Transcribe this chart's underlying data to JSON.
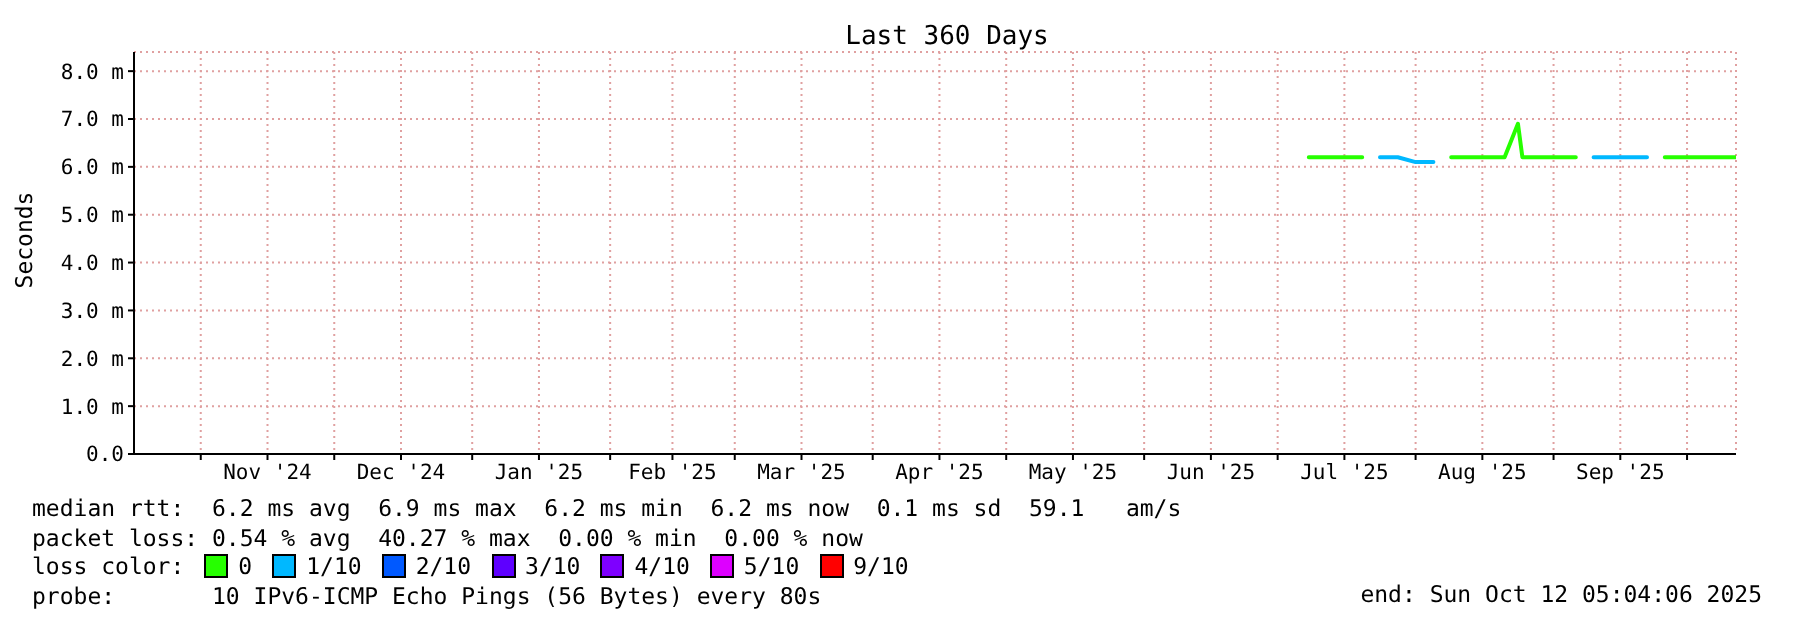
{
  "chart_data": {
    "type": "line",
    "title": "Last 360 Days",
    "ylabel": "Seconds",
    "legend_title": "loss color:",
    "x": [
      "2025-07-08",
      "2025-07-12",
      "2025-07-16",
      "2025-07-20",
      "2025-07-24",
      "2025-07-28",
      "2025-08-01",
      "2025-08-05",
      "2025-08-09",
      "2025-08-13",
      "2025-08-17",
      "2025-08-21",
      "2025-08-24",
      "2025-08-25",
      "2025-08-29",
      "2025-09-02",
      "2025-09-06",
      "2025-09-10",
      "2025-09-14",
      "2025-09-18",
      "2025-09-22",
      "2025-09-26",
      "2025-09-30",
      "2025-10-04",
      "2025-10-08",
      "2025-10-12"
    ],
    "series": [
      {
        "name": "0",
        "color": "#26ff00",
        "values": [
          6.2,
          6.2,
          6.2,
          6.2,
          null,
          null,
          null,
          null,
          6.2,
          6.2,
          6.2,
          6.2,
          6.9,
          6.2,
          6.2,
          6.2,
          6.2,
          null,
          null,
          null,
          null,
          6.2,
          6.2,
          6.2,
          6.2,
          6.2
        ]
      },
      {
        "name": "1/10",
        "color": "#00b8ff",
        "values": [
          null,
          null,
          null,
          null,
          6.2,
          6.2,
          6.1,
          6.1,
          null,
          null,
          null,
          null,
          null,
          null,
          null,
          null,
          null,
          6.2,
          6.2,
          6.2,
          6.2,
          null,
          null,
          null,
          null,
          null
        ]
      },
      {
        "name": "2/10",
        "color": "#0059ff",
        "values": [
          null,
          null,
          null,
          null,
          null,
          null,
          null,
          null,
          null,
          null,
          null,
          null,
          null,
          null,
          null,
          null,
          null,
          null,
          null,
          null,
          null,
          null,
          null,
          null,
          null,
          null
        ]
      },
      {
        "name": "3/10",
        "color": "#5e00ff",
        "values": [
          null,
          null,
          null,
          null,
          null,
          null,
          null,
          null,
          null,
          null,
          null,
          null,
          null,
          null,
          null,
          null,
          null,
          null,
          null,
          null,
          null,
          null,
          null,
          null,
          null,
          null
        ]
      },
      {
        "name": "4/10",
        "color": "#7e00ff",
        "values": [
          null,
          null,
          null,
          null,
          null,
          null,
          null,
          null,
          null,
          null,
          null,
          null,
          null,
          null,
          null,
          null,
          null,
          null,
          null,
          null,
          null,
          null,
          null,
          null,
          null,
          null
        ]
      },
      {
        "name": "5/10",
        "color": "#dd00ff",
        "values": [
          null,
          null,
          null,
          null,
          null,
          null,
          null,
          null,
          null,
          null,
          null,
          null,
          null,
          null,
          null,
          null,
          null,
          null,
          null,
          null,
          null,
          null,
          null,
          null,
          null,
          null
        ]
      },
      {
        "name": "9/10",
        "color": "#ff0000",
        "values": [
          null,
          null,
          null,
          null,
          null,
          null,
          null,
          null,
          null,
          null,
          null,
          null,
          null,
          null,
          null,
          null,
          null,
          null,
          null,
          null,
          null,
          null,
          null,
          null,
          null,
          null
        ]
      }
    ],
    "xlim": [
      "2024-10-17",
      "2025-10-12"
    ],
    "xticks": [
      {
        "value": "2024-11-01",
        "label": null
      },
      {
        "value": "2024-11-16",
        "label": "Nov '24"
      },
      {
        "value": "2024-12-01",
        "label": null
      },
      {
        "value": "2024-12-16",
        "label": "Dec '24"
      },
      {
        "value": "2025-01-01",
        "label": null
      },
      {
        "value": "2025-01-16",
        "label": "Jan '25"
      },
      {
        "value": "2025-02-01",
        "label": null
      },
      {
        "value": "2025-02-15",
        "label": "Feb '25"
      },
      {
        "value": "2025-03-01",
        "label": null
      },
      {
        "value": "2025-03-16",
        "label": "Mar '25"
      },
      {
        "value": "2025-04-01",
        "label": null
      },
      {
        "value": "2025-04-16",
        "label": "Apr '25"
      },
      {
        "value": "2025-05-01",
        "label": null
      },
      {
        "value": "2025-05-16",
        "label": "May '25"
      },
      {
        "value": "2025-06-01",
        "label": null
      },
      {
        "value": "2025-06-16",
        "label": "Jun '25"
      },
      {
        "value": "2025-07-01",
        "label": null
      },
      {
        "value": "2025-07-16",
        "label": "Jul '25"
      },
      {
        "value": "2025-08-01",
        "label": null
      },
      {
        "value": "2025-08-16",
        "label": "Aug '25"
      },
      {
        "value": "2025-09-01",
        "label": null
      },
      {
        "value": "2025-09-16",
        "label": "Sep '25"
      },
      {
        "value": "2025-10-01",
        "label": null
      }
    ],
    "ylim": [
      0,
      8.4
    ],
    "yticks": [
      {
        "value": 0,
        "label": "0.0"
      },
      {
        "value": 1,
        "label": "1.0 m"
      },
      {
        "value": 2,
        "label": "2.0 m"
      },
      {
        "value": 3,
        "label": "3.0 m"
      },
      {
        "value": 4,
        "label": "4.0 m"
      },
      {
        "value": 5,
        "label": "5.0 m"
      },
      {
        "value": 6,
        "label": "6.0 m"
      },
      {
        "value": 7,
        "label": "7.0 m"
      },
      {
        "value": 8,
        "label": "8.0 m"
      }
    ],
    "grid": true,
    "legend": "bottom",
    "marker": "none",
    "line_style": "solid",
    "annotations": [
      "median rtt:  6.2 ms avg  6.9 ms max  6.2 ms min  6.2 ms now  0.1 ms sd  59.1   am/s",
      "packet loss: 0.54 % avg  40.27 % max  0.00 % min  0.00 % now",
      "probe:       10 IPv6-ICMP Echo Pings (56 Bytes) every 80s",
      "end: Sun Oct 12 05:04:06 2025"
    ]
  }
}
